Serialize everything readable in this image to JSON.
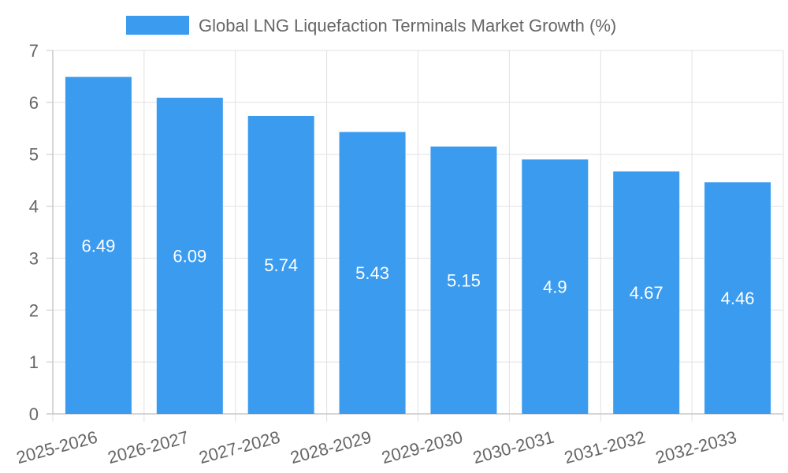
{
  "chart_data": {
    "type": "bar",
    "title": "",
    "legend": {
      "position": "top",
      "entries": [
        {
          "label": "Global LNG Liquefaction Terminals Market Growth (%)",
          "color": "#3a9bef"
        }
      ]
    },
    "categories": [
      "2025-2026",
      "2026-2027",
      "2027-2028",
      "2028-2029",
      "2029-2030",
      "2030-2031",
      "2031-2032",
      "2032-2033"
    ],
    "series": [
      {
        "name": "Global LNG Liquefaction Terminals Market Growth (%)",
        "values": [
          6.49,
          6.09,
          5.74,
          5.43,
          5.15,
          4.9,
          4.67,
          4.46
        ],
        "color": "#3a9bef"
      }
    ],
    "data_labels": [
      "6.49",
      "6.09",
      "5.74",
      "5.43",
      "5.15",
      "4.9",
      "4.67",
      "4.46"
    ],
    "y_ticks": [
      "0",
      "1",
      "2",
      "3",
      "4",
      "5",
      "6",
      "7"
    ],
    "ylim": [
      0,
      7
    ],
    "xlabel": "",
    "ylabel": "",
    "grid": true
  }
}
